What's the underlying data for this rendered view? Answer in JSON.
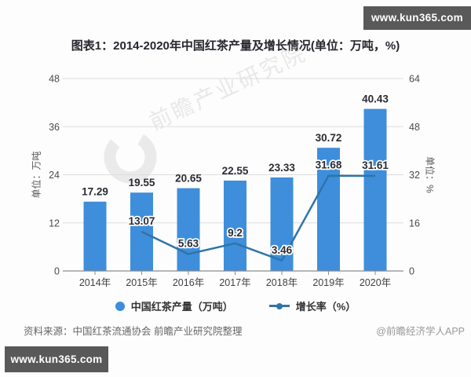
{
  "site_banner": {
    "top_right": "www.kun365.com",
    "bottom_left": "www.kun365.com"
  },
  "title": "图表1：2014-2020年中国红茶产量及增长情况(单位：万吨，%)",
  "watermark_text": "前瞻产业研究院",
  "source_note": "资料来源：中国红茶流通协会 前瞻产业研究院整理",
  "credit": "@前瞻经济学人APP",
  "colors": {
    "bar": "#3E8EDB",
    "line": "#2E74A8",
    "banner_bg": "#595959",
    "grid": "#DDDDDD",
    "axis": "#8C8C8C",
    "value_label": "#2B2B33",
    "tick_label": "#4A4A4A"
  },
  "chart_data": {
    "type": "bar+line combo",
    "title": "图表1：2014-2020年中国红茶产量及增长情况(单位：万吨，%)",
    "categories": [
      "2014年",
      "2015年",
      "2016年",
      "2017年",
      "2018年",
      "2019年",
      "2020年"
    ],
    "series": [
      {
        "name": "中国红茶产量（万吨）",
        "type": "bar",
        "axis": "left",
        "values": [
          17.29,
          19.55,
          20.65,
          22.55,
          23.33,
          30.72,
          40.43
        ]
      },
      {
        "name": "增长率（%）",
        "type": "line",
        "axis": "right",
        "values": [
          null,
          13.07,
          5.63,
          9.2,
          3.46,
          31.68,
          31.61
        ]
      }
    ],
    "left_axis": {
      "label": "单位：万吨",
      "ticks": [
        0,
        12,
        24,
        36,
        48
      ],
      "min": 0,
      "max": 48
    },
    "right_axis": {
      "label": "单位：%",
      "ticks": [
        0,
        16,
        32,
        48,
        64
      ],
      "min": 0,
      "max": 64
    },
    "legend": [
      "中国红茶产量（万吨）",
      "增长率（%）"
    ],
    "grid": true,
    "legend_position": "bottom"
  }
}
